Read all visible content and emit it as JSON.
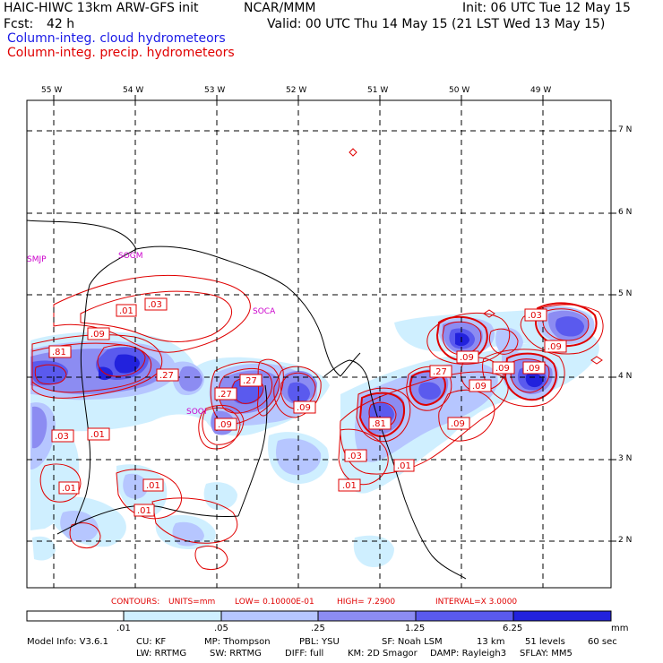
{
  "header": {
    "model_title": "HAIC-HIWC 13km ARW-GFS init",
    "org": "NCAR/MMM",
    "init": "Init: 06 UTC Tue 12 May 15",
    "fcst_label": "Fcst:",
    "fcst_value": "42 h",
    "valid": "Valid: 00 UTC Thu 14 May 15 (21 LST Wed 13 May 15)",
    "line_cloud": "Column-integ. cloud hydrometeors",
    "line_precip": "Column-integ. precip. hydrometeors"
  },
  "colors": {
    "cloud_legend": "#1a1ae6",
    "precip_legend": "#e00000",
    "station": "#cc00cc",
    "contour": "#e00000",
    "fill_1": "#cfefff",
    "fill_2": "#b6c6ff",
    "fill_3": "#8c8cf2",
    "fill_4": "#5a5aee",
    "fill_5": "#2222dd"
  },
  "map": {
    "lon_labels": [
      "55 W",
      "54 W",
      "53 W",
      "52 W",
      "51 W",
      "50 W",
      "49 W"
    ],
    "lat_labels": [
      "7 N",
      "6 N",
      "5 N",
      "4 N",
      "3 N",
      "2 N"
    ],
    "stations": [
      "SMJP",
      "SOGM",
      "SOCA",
      "SOOI"
    ],
    "contour_labels": [
      ".01",
      ".03",
      ".09",
      ".81",
      ".27",
      ".03",
      ".01",
      ".01",
      ".01",
      ".27",
      ".09",
      ".09",
      ".81",
      ".27",
      ".09",
      ".09",
      ".03",
      ".01",
      ".01",
      ".09",
      ".03",
      ".09",
      ".09",
      ".09",
      ".27",
      ".01"
    ]
  },
  "contour_info": {
    "contours": "CONTOURS:",
    "units": "UNITS=mm",
    "low": "LOW= 0.10000E-01",
    "high": "HIGH=  7.2900",
    "interval": "INTERVAL=X  3.0000"
  },
  "colorbar": {
    "ticks": [
      ".01",
      ".05",
      ".25",
      "1.25",
      "6.25"
    ],
    "unit": "mm"
  },
  "footer": {
    "model_info": "Model Info: V3.6.1",
    "cu": "CU: KF",
    "mp": "MP: Thompson",
    "pbl": "PBL: YSU",
    "sf": "SF: Noah LSM",
    "res": "13 km",
    "levels": "51 levels",
    "dt": "60 sec",
    "lw": "LW: RRTMG",
    "sw": "SW: RRTMG",
    "diff": "DIFF: full",
    "km": "KM: 2D Smagor",
    "damp": "DAMP: Rayleigh3",
    "sflay": "SFLAY: MM5"
  }
}
